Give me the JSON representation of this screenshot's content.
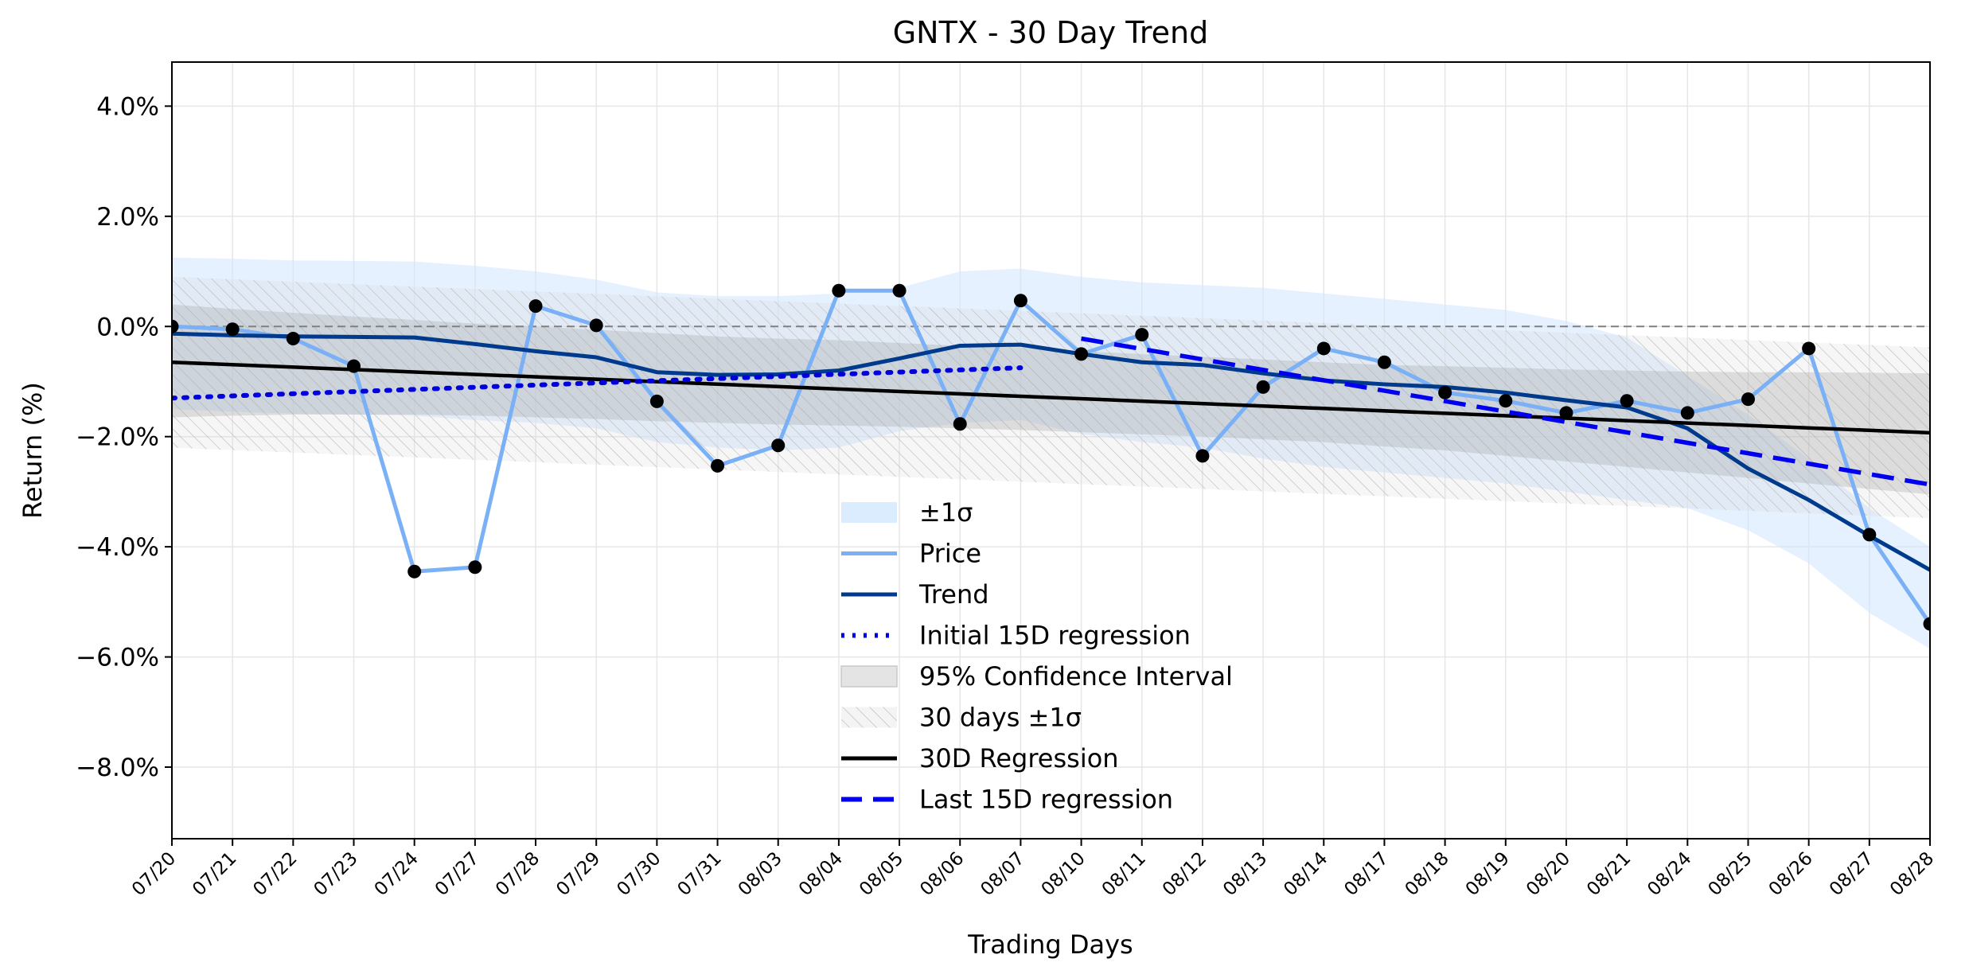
{
  "chart_data": {
    "type": "line",
    "title": "GNTX - 30 Day Trend",
    "xlabel": "Trading Days",
    "ylabel": "Return (%)",
    "categories": [
      "07/20",
      "07/21",
      "07/22",
      "07/23",
      "07/24",
      "07/27",
      "07/28",
      "07/29",
      "07/30",
      "07/31",
      "08/03",
      "08/04",
      "08/05",
      "08/06",
      "08/07",
      "08/10",
      "08/11",
      "08/12",
      "08/13",
      "08/14",
      "08/17",
      "08/18",
      "08/19",
      "08/20",
      "08/21",
      "08/24",
      "08/25",
      "08/26",
      "08/27",
      "08/28"
    ],
    "ylim": [
      -9.3,
      4.8
    ],
    "yticks": [
      4.0,
      2.0,
      0.0,
      -2.0,
      -4.0,
      -6.0,
      -8.0
    ],
    "ytick_labels": [
      "4.0%",
      "2.0%",
      "0.0%",
      "−2.0%",
      "−4.0%",
      "−6.0%",
      "−8.0%"
    ],
    "grid": true,
    "legend_position": "bottom-center",
    "series": [
      {
        "name": "Price",
        "color": "#7ab0f5",
        "values": [
          0.0,
          -0.05,
          -0.22,
          -0.72,
          -4.45,
          -4.37,
          0.37,
          0.02,
          -1.36,
          -2.53,
          -2.16,
          0.65,
          0.65,
          -1.77,
          0.47,
          -0.5,
          -0.15,
          -2.35,
          -1.1,
          -0.4,
          -0.65,
          -1.2,
          -1.35,
          -1.57,
          -1.35,
          -1.57,
          -1.32,
          -0.4,
          -3.78,
          -5.4
        ]
      },
      {
        "name": "Trend",
        "color": "#003a8c",
        "values": [
          -0.13,
          -0.16,
          -0.18,
          -0.19,
          -0.2,
          -0.32,
          -0.45,
          -0.56,
          -0.83,
          -0.88,
          -0.87,
          -0.8,
          -0.58,
          -0.35,
          -0.33,
          -0.5,
          -0.65,
          -0.7,
          -0.85,
          -0.98,
          -1.05,
          -1.1,
          -1.2,
          -1.34,
          -1.47,
          -1.85,
          -2.58,
          -3.15,
          -3.8,
          -4.42
        ]
      },
      {
        "name": "Initial 15D regression",
        "color": "#0000dd",
        "range": [
          0,
          14
        ],
        "start": -1.3,
        "end": -0.75
      },
      {
        "name": "30D Regression",
        "color": "#000000",
        "range": [
          0,
          29
        ],
        "start": -0.65,
        "end": -1.93
      },
      {
        "name": "Last 15D regression",
        "color": "#0000ee",
        "range": [
          15,
          29
        ],
        "start": -0.22,
        "end": -2.87
      }
    ],
    "bands": {
      "sigma_upper": [
        1.25,
        1.23,
        1.2,
        1.19,
        1.18,
        1.1,
        1.0,
        0.85,
        0.62,
        0.55,
        0.55,
        0.6,
        0.7,
        1.0,
        1.05,
        0.9,
        0.8,
        0.75,
        0.7,
        0.6,
        0.5,
        0.4,
        0.3,
        0.1,
        -0.2,
        -0.9,
        -1.6,
        -2.4,
        -3.3,
        -4.0
      ],
      "sigma_lower": [
        -1.5,
        -1.55,
        -1.58,
        -1.6,
        -1.62,
        -1.7,
        -1.75,
        -1.85,
        -2.1,
        -2.2,
        -2.25,
        -2.2,
        -1.9,
        -1.75,
        -1.7,
        -1.95,
        -2.1,
        -2.2,
        -2.4,
        -2.55,
        -2.65,
        -2.75,
        -2.85,
        -3.0,
        -3.15,
        -3.3,
        -3.7,
        -4.3,
        -5.2,
        -5.85
      ],
      "ci95_upper": [
        0.4,
        0.32,
        0.25,
        0.18,
        0.12,
        0.05,
        0.0,
        -0.06,
        -0.12,
        -0.18,
        -0.22,
        -0.25,
        -0.3,
        -0.35,
        -0.38,
        -0.45,
        -0.5,
        -0.55,
        -0.6,
        -0.65,
        -0.7,
        -0.72,
        -0.75,
        -0.78,
        -0.8,
        -0.82,
        -0.83,
        -0.83,
        -0.84,
        -0.85
      ],
      "ci95_lower": [
        -1.65,
        -1.62,
        -1.6,
        -1.6,
        -1.6,
        -1.62,
        -1.65,
        -1.68,
        -1.72,
        -1.75,
        -1.78,
        -1.8,
        -1.82,
        -1.85,
        -1.88,
        -1.92,
        -1.96,
        -2.0,
        -2.05,
        -2.1,
        -2.18,
        -2.25,
        -2.35,
        -2.45,
        -2.55,
        -2.65,
        -2.75,
        -2.85,
        -2.95,
        -3.05
      ],
      "thirty_day_offset": 1.55
    },
    "legend": [
      {
        "label": "±1σ",
        "kind": "patch-sigma"
      },
      {
        "label": "Price",
        "kind": "line-price"
      },
      {
        "label": "Trend",
        "kind": "line-trend"
      },
      {
        "label": "Initial 15D regression",
        "kind": "line-initial"
      },
      {
        "label": "95% Confidence Interval",
        "kind": "patch-ci"
      },
      {
        "label": "30 days ±1σ",
        "kind": "patch-hatch"
      },
      {
        "label": "30D Regression",
        "kind": "line-reg30"
      },
      {
        "label": "Last 15D regression",
        "kind": "line-last15"
      }
    ]
  }
}
